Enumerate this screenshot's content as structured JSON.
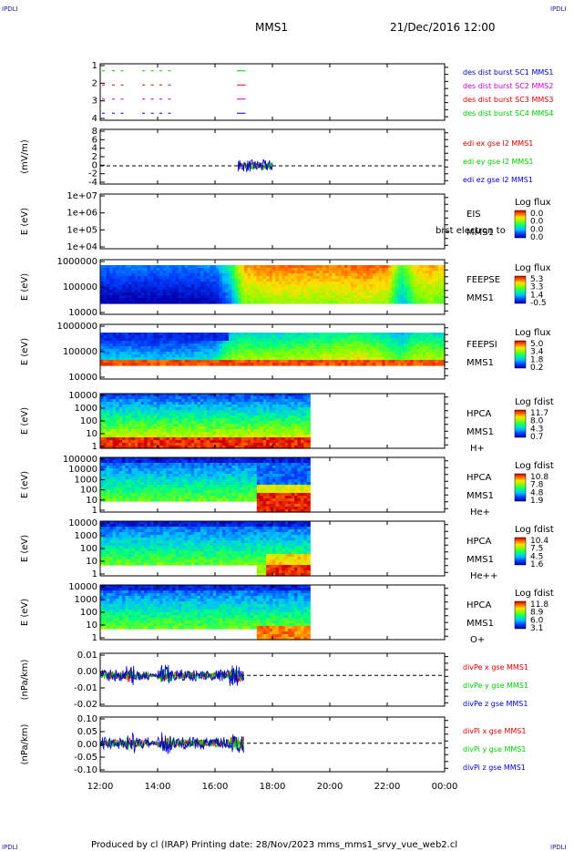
{
  "header": {
    "corner_tl": "IPDLI",
    "corner_tr": "IPDLI",
    "corner_bl": "IPDLI",
    "corner_br": "IPDLI",
    "mission": "MMS1",
    "datetime": "21/Dec/2016 12:00"
  },
  "footer": {
    "text": "Produced by cl (IRAP)   Printing date: 28/Nov/2023   mms_mms1_srvy_vue_web2.cl"
  },
  "colors": {
    "mms1": "#0000cc",
    "mms2": "#cc00cc",
    "mms3": "#dd0000",
    "mms4": "#00cc00"
  },
  "chart_data": [
    {
      "id": "burst",
      "type": "line",
      "ylabel": "",
      "x_time_range": [
        "12:00",
        "00:00"
      ],
      "ylim": [
        0.5,
        4.5
      ],
      "yticks": [
        "1",
        "2",
        "3",
        "4"
      ],
      "series": [
        {
          "name": "des dist burst SC1 MMS1",
          "color": "#0000cc",
          "level": 1
        },
        {
          "name": "des dist burst SC2 MMS2",
          "color": "#cc00cc",
          "level": 2
        },
        {
          "name": "des dist burst SC3 MMS3",
          "color": "#dd0000",
          "level": 3
        },
        {
          "name": "des dist burst SC4 MMS4",
          "color": "#00cc00",
          "level": 4
        }
      ],
      "burst_intervals_hours": [
        [
          12.0,
          12.1
        ],
        [
          12.35,
          12.45
        ],
        [
          12.65,
          12.75
        ],
        [
          13.4,
          13.5
        ],
        [
          13.7,
          13.8
        ],
        [
          14.0,
          14.1
        ],
        [
          14.3,
          14.4
        ],
        [
          16.7,
          17.0
        ]
      ]
    },
    {
      "id": "edi",
      "type": "line",
      "ylabel": "(mV/m)",
      "yticks": [
        "8",
        "6",
        "4",
        "2",
        "0",
        "-2",
        "-4"
      ],
      "ylim": [
        -4.5,
        9
      ],
      "zero_line": true,
      "series": [
        {
          "name": "edi ex gse l2 MMS1",
          "color": "#dd0000"
        },
        {
          "name": "edi ey gse l2 MMS1",
          "color": "#00cc00"
        },
        {
          "name": "edi ez gse l2 MMS1",
          "color": "#0000cc"
        }
      ],
      "data_time_range_hours": [
        16.8,
        18.0
      ]
    },
    {
      "id": "eis",
      "type": "heatmap",
      "ylabel": "E (eV)",
      "yticks": [
        "1e+07",
        "1e+06",
        "1e+05",
        "1e+04"
      ],
      "labels": [
        "EIS",
        "MMS1"
      ],
      "overlay_text": "brst electron to",
      "colorbar_title": "Log flux",
      "colorbar_values": [
        "0.0",
        "0.0",
        "0.0",
        "0.0"
      ],
      "empty": true
    },
    {
      "id": "feeps_e",
      "type": "heatmap",
      "ylabel": "E (eV)",
      "yticks": [
        "1000000",
        "100000",
        "10000"
      ],
      "labels": [
        "FEEPSE",
        "MMS1"
      ],
      "colorbar_title": "Log flux",
      "colorbar_values": [
        "5.3",
        "3.3",
        "1.4",
        "-0.5"
      ],
      "profile_hours": [
        12,
        13,
        14,
        15,
        16,
        16.5,
        17,
        18,
        19,
        20,
        21,
        22,
        22.5,
        23,
        23.5,
        24
      ],
      "profile_level": [
        0.25,
        0.25,
        0.25,
        0.25,
        0.28,
        0.45,
        0.85,
        0.9,
        0.9,
        0.88,
        0.92,
        0.9,
        0.55,
        0.8,
        0.85,
        0.8
      ]
    },
    {
      "id": "feeps_i",
      "type": "heatmap",
      "ylabel": "E (eV)",
      "yticks": [
        "1000000",
        "100000",
        "10000"
      ],
      "labels": [
        "FEEPSI",
        "MMS1"
      ],
      "colorbar_title": "Log flux",
      "colorbar_values": [
        "5.0",
        "3.4",
        "1.8",
        "0.2"
      ],
      "profile_hours": [
        12,
        13,
        14,
        15,
        16,
        16.5,
        17,
        18,
        19,
        20,
        21,
        22,
        22.5,
        23,
        24
      ],
      "profile_level": [
        0.3,
        0.3,
        0.28,
        0.3,
        0.35,
        0.55,
        0.6,
        0.6,
        0.62,
        0.65,
        0.7,
        0.6,
        0.5,
        0.65,
        0.6
      ]
    },
    {
      "id": "hpca_h",
      "type": "heatmap",
      "ylabel": "E (eV)",
      "yticks": [
        "10000",
        "1000",
        "100",
        "10",
        "1"
      ],
      "labels": [
        "HPCA",
        "MMS1",
        "H+"
      ],
      "colorbar_title": "Log fdist",
      "colorbar_values": [
        "11.7",
        "8.0",
        "4.3",
        "0.7"
      ],
      "data_end_hour": 19.35
    },
    {
      "id": "hpca_he",
      "type": "heatmap",
      "ylabel": "E (eV)",
      "yticks": [
        "100000",
        "10000",
        "1000",
        "100",
        "10",
        "1"
      ],
      "labels": [
        "HPCA",
        "MMS1",
        "He+"
      ],
      "colorbar_title": "Log fdist",
      "colorbar_values": [
        "10.8",
        "7.8",
        "4.8",
        "1.9"
      ],
      "data_end_hour": 19.35
    },
    {
      "id": "hpca_hepp",
      "type": "heatmap",
      "ylabel": "E (eV)",
      "yticks": [
        "10000",
        "1000",
        "100",
        "10",
        "1"
      ],
      "labels": [
        "HPCA",
        "MMS1",
        "He++"
      ],
      "colorbar_title": "Log fdist",
      "colorbar_values": [
        "10.4",
        "7.5",
        "4.5",
        "1.6"
      ],
      "data_end_hour": 19.35
    },
    {
      "id": "hpca_o",
      "type": "heatmap",
      "ylabel": "E (eV)",
      "yticks": [
        "10000",
        "1000",
        "100",
        "10",
        "1"
      ],
      "labels": [
        "HPCA",
        "MMS1",
        "O+"
      ],
      "colorbar_title": "Log fdist",
      "colorbar_values": [
        "11.8",
        "8.9",
        "6.0",
        "3.1"
      ],
      "data_end_hour": 19.35
    },
    {
      "id": "divpe",
      "type": "line",
      "ylabel": "(nPa/km)",
      "yticks": [
        "0.01",
        "0.00",
        "-0.01",
        "-0.02"
      ],
      "ylim": [
        -0.025,
        0.018
      ],
      "zero_line": true,
      "series": [
        {
          "name": "divPe x gse MMS1",
          "color": "#dd0000"
        },
        {
          "name": "divPe y gse MMS1",
          "color": "#00cc00"
        },
        {
          "name": "divPe z gse MMS1",
          "color": "#0000cc"
        }
      ],
      "data_time_range_hours": [
        12.0,
        17.0
      ]
    },
    {
      "id": "divpi",
      "type": "line",
      "ylabel": "(nPa/km)",
      "yticks": [
        "0.10",
        "0.05",
        "0.00",
        "-0.05",
        "-0.10"
      ],
      "ylim": [
        -0.13,
        0.12
      ],
      "zero_line": true,
      "series": [
        {
          "name": "divPi x gse MMS1",
          "color": "#dd0000"
        },
        {
          "name": "divPi y gse MMS1",
          "color": "#00cc00"
        },
        {
          "name": "divPi z gse MMS1",
          "color": "#0000cc"
        }
      ],
      "data_time_range_hours": [
        12.0,
        17.0
      ]
    }
  ],
  "x_axis": {
    "tick_labels": [
      "12:00",
      "14:00",
      "16:00",
      "18:00",
      "20:00",
      "22:00",
      "00:00"
    ],
    "tick_hours": [
      12,
      14,
      16,
      18,
      20,
      22,
      24
    ]
  }
}
